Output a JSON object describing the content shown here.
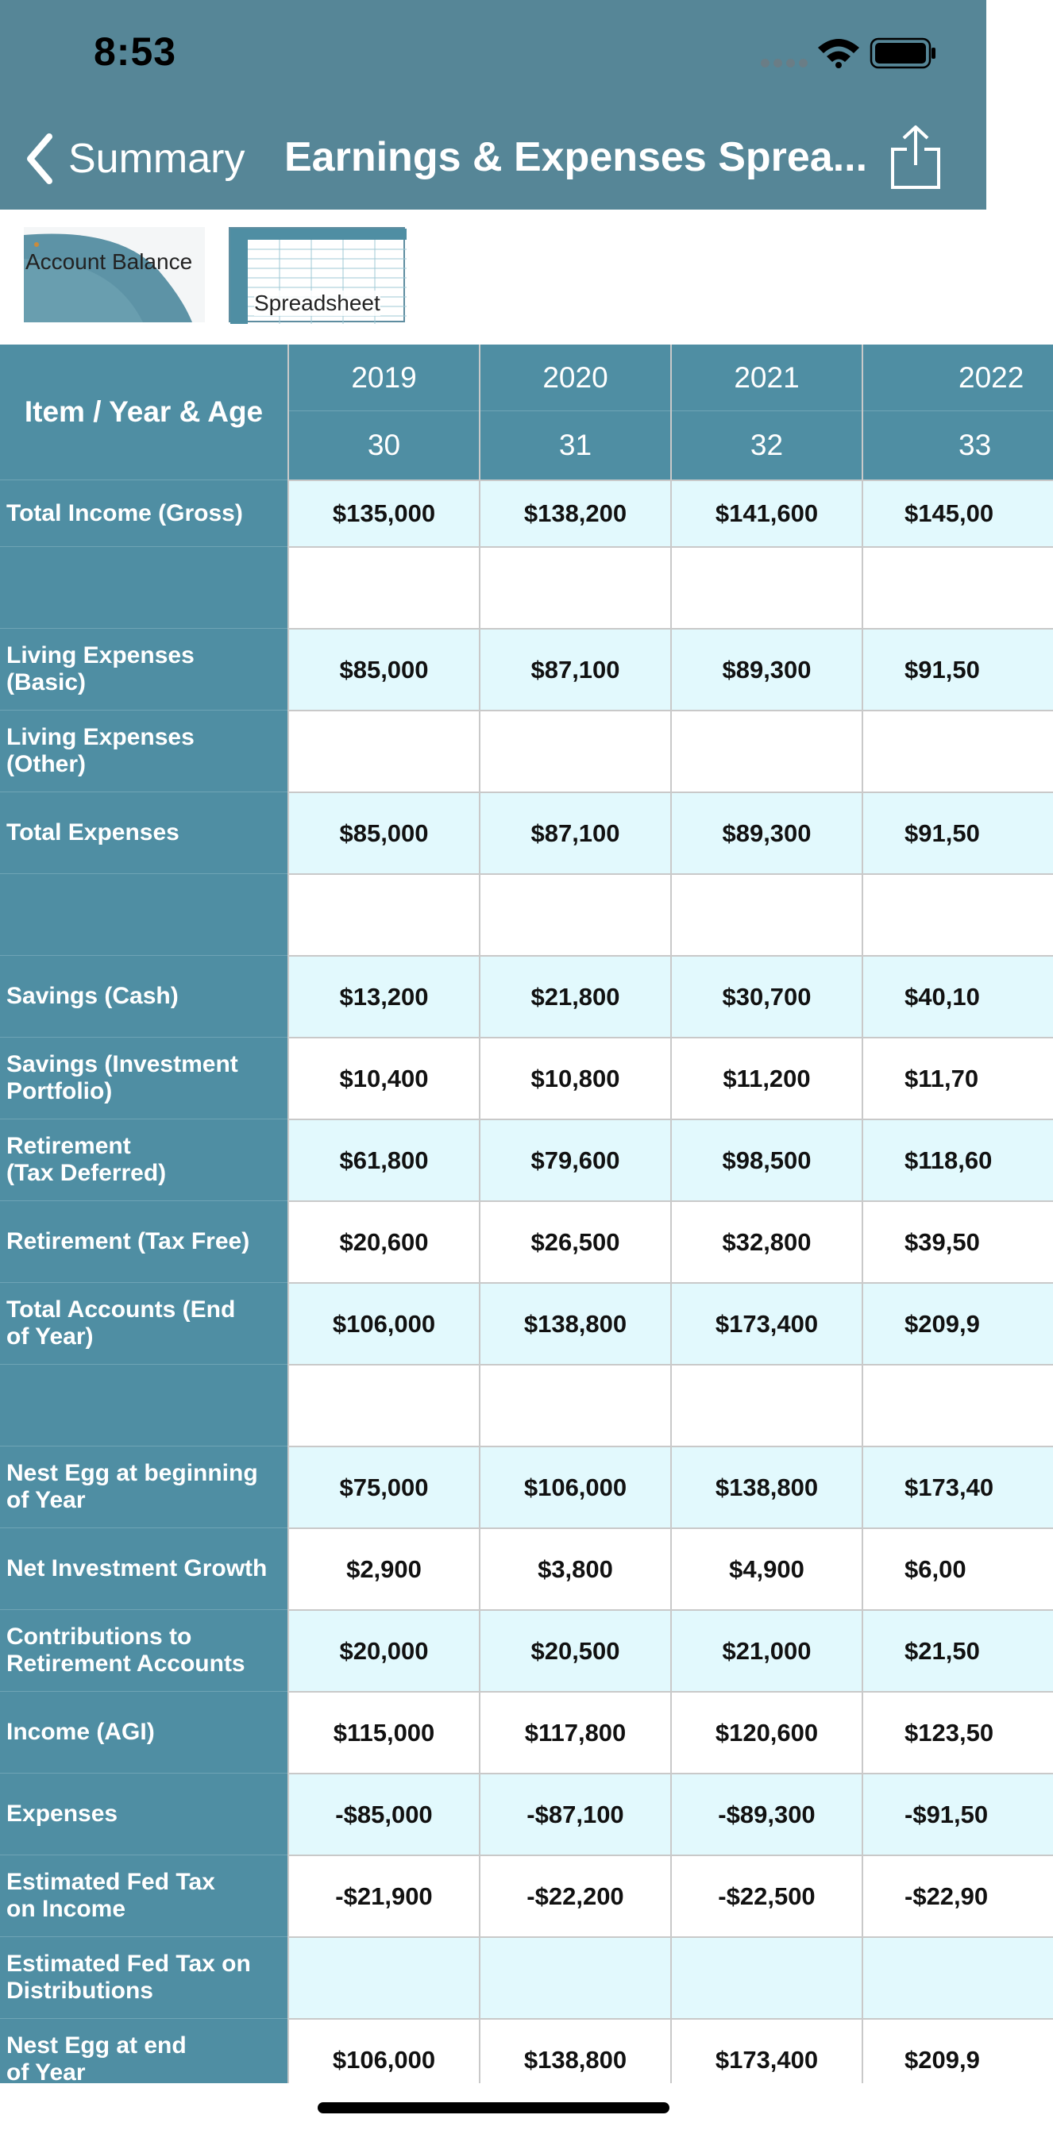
{
  "status_bar": {
    "time": "8:53"
  },
  "nav": {
    "back_label": "Summary",
    "title": "Earnings & Expenses Sprea..."
  },
  "thumbnails": {
    "account_balance": "Account Balance",
    "spreadsheet": "Spreadsheet"
  },
  "table": {
    "header_label": "Item / Year & Age",
    "columns": [
      {
        "year": "2019",
        "age": "30"
      },
      {
        "year": "2020",
        "age": "31"
      },
      {
        "year": "2021",
        "age": "32"
      },
      {
        "year": "2022",
        "age": "33"
      }
    ],
    "rows": [
      {
        "label": "Total Income (Gross)",
        "values": [
          "$135,000",
          "$138,200",
          "$141,600",
          "$145,00"
        ]
      },
      {
        "label": "",
        "values": [
          "",
          "",
          "",
          ""
        ]
      },
      {
        "label": "Living Expenses\n(Basic)",
        "values": [
          "$85,000",
          "$87,100",
          "$89,300",
          "$91,50"
        ]
      },
      {
        "label": "Living Expenses\n(Other)",
        "values": [
          "",
          "",
          "",
          ""
        ]
      },
      {
        "label": "Total Expenses",
        "values": [
          "$85,000",
          "$87,100",
          "$89,300",
          "$91,50"
        ]
      },
      {
        "label": "",
        "values": [
          "",
          "",
          "",
          ""
        ]
      },
      {
        "label": "Savings (Cash)",
        "values": [
          "$13,200",
          "$21,800",
          "$30,700",
          "$40,10"
        ]
      },
      {
        "label": "Savings (Investment\nPortfolio)",
        "values": [
          "$10,400",
          "$10,800",
          "$11,200",
          "$11,70"
        ]
      },
      {
        "label": "Retirement\n(Tax Deferred)",
        "values": [
          "$61,800",
          "$79,600",
          "$98,500",
          "$118,60"
        ]
      },
      {
        "label": "Retirement (Tax Free)",
        "values": [
          "$20,600",
          "$26,500",
          "$32,800",
          "$39,50"
        ]
      },
      {
        "label": "Total Accounts (End\nof Year)",
        "values": [
          "$106,000",
          "$138,800",
          "$173,400",
          "$209,9"
        ]
      },
      {
        "label": "",
        "values": [
          "",
          "",
          "",
          ""
        ]
      },
      {
        "label": "Nest Egg at beginning\nof Year",
        "values": [
          "$75,000",
          "$106,000",
          "$138,800",
          "$173,40"
        ]
      },
      {
        "label": "Net Investment Growth",
        "values": [
          "$2,900",
          "$3,800",
          "$4,900",
          "$6,00"
        ]
      },
      {
        "label": "Contributions to\nRetirement Accounts",
        "values": [
          "$20,000",
          "$20,500",
          "$21,000",
          "$21,50"
        ]
      },
      {
        "label": "Income (AGI)",
        "values": [
          "$115,000",
          "$117,800",
          "$120,600",
          "$123,50"
        ]
      },
      {
        "label": "Expenses",
        "values": [
          "-$85,000",
          "-$87,100",
          "-$89,300",
          "-$91,50"
        ]
      },
      {
        "label": "Estimated Fed Tax\non Income",
        "values": [
          "-$21,900",
          "-$22,200",
          "-$22,500",
          "-$22,90"
        ]
      },
      {
        "label": "Estimated Fed Tax on\nDistributions",
        "values": [
          "",
          "",
          "",
          ""
        ]
      },
      {
        "label": "Nest Egg at end\nof Year",
        "values": [
          "$106,000",
          "$138,800",
          "$173,400",
          "$209,9"
        ]
      }
    ]
  },
  "colors": {
    "header_bg": "#568697",
    "label_col_bg": "#4f8ea3",
    "shade_row": "#e2f9fd"
  }
}
